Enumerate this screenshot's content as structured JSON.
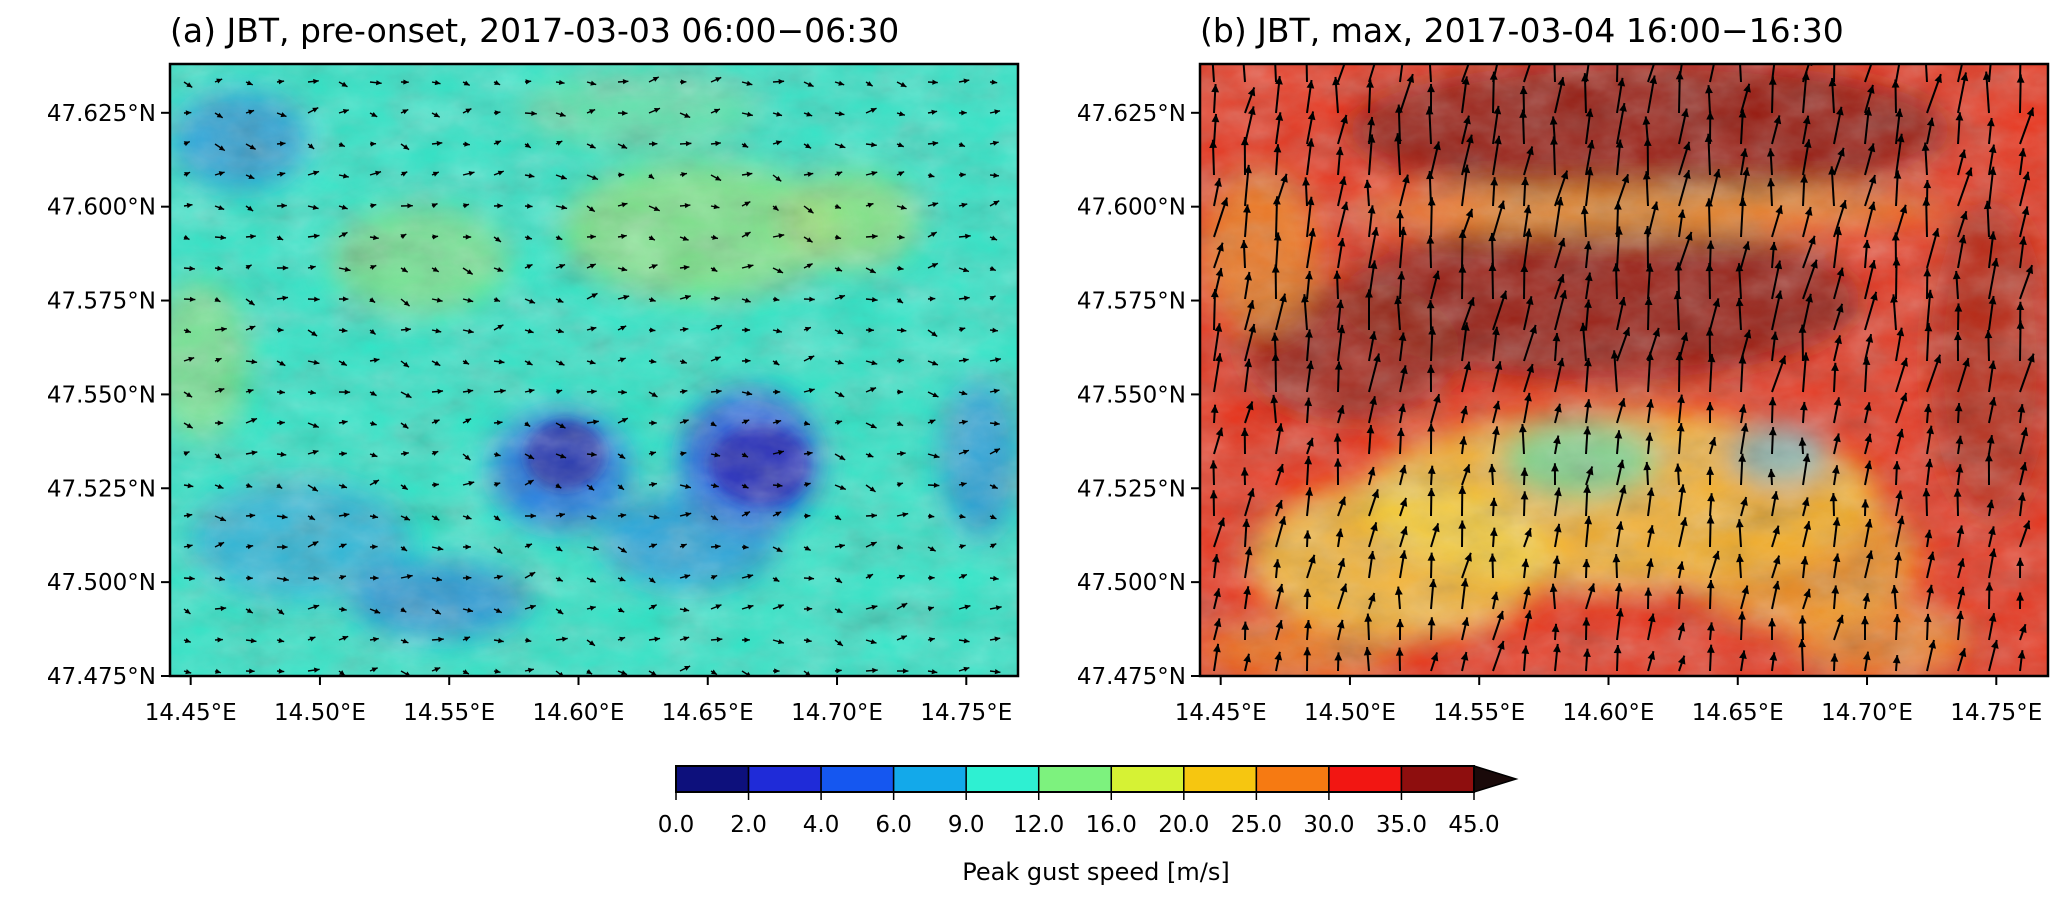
{
  "chart_data": [
    {
      "type": "heatmap",
      "title": "(a) JBT, pre-onset, 2017-03-03 06:00−06:30",
      "x_ticks": [
        "14.45°E",
        "14.50°E",
        "14.55°E",
        "14.60°E",
        "14.65°E",
        "14.70°E",
        "14.75°E"
      ],
      "y_ticks": [
        "47.625°N",
        "47.600°N",
        "47.575°N",
        "47.550°N",
        "47.525°N",
        "47.500°N",
        "47.475°N"
      ],
      "x_values": [
        14.45,
        14.5,
        14.55,
        14.6,
        14.65,
        14.7,
        14.75
      ],
      "y_values": [
        47.625,
        47.6,
        47.575,
        47.55,
        47.525,
        47.5,
        47.475
      ],
      "xlim": [
        14.442,
        14.77
      ],
      "ylim": [
        47.475,
        47.638
      ],
      "wind_vectors": "small arrows, light winds",
      "colors": {
        "base": "#2fe6c8",
        "low": "#1a28d0",
        "mid": "#7fd87a"
      }
    },
    {
      "type": "heatmap",
      "title": "(b) JBT, max, 2017-03-04 16:00−16:30",
      "x_ticks": [
        "14.45°E",
        "14.50°E",
        "14.55°E",
        "14.60°E",
        "14.65°E",
        "14.70°E",
        "14.75°E"
      ],
      "y_ticks": [
        "47.625°N",
        "47.600°N",
        "47.575°N",
        "47.550°N",
        "47.525°N",
        "47.500°N",
        "47.475°N"
      ],
      "x_values": [
        14.45,
        14.5,
        14.55,
        14.6,
        14.65,
        14.7,
        14.75
      ],
      "y_values": [
        47.625,
        47.6,
        47.575,
        47.55,
        47.525,
        47.5,
        47.475
      ],
      "xlim": [
        14.442,
        14.77
      ],
      "ylim": [
        47.475,
        47.638
      ],
      "wind_vectors": "large arrows, strong south-westerly winds",
      "colors": {
        "base": "#e8341c",
        "high": "#8e1a10",
        "mid": "#f6c634"
      }
    }
  ],
  "colorbar": {
    "label": "Peak gust speed [m/s]",
    "ticks": [
      "0.0",
      "2.0",
      "4.0",
      "6.0",
      "9.0",
      "12.0",
      "16.0",
      "20.0",
      "25.0",
      "30.0",
      "35.0",
      "45.0"
    ],
    "colors": [
      "#0d107c",
      "#1f2bd8",
      "#1557f0",
      "#13a9ea",
      "#2ef0d2",
      "#7df27e",
      "#d6f234",
      "#f6c610",
      "#f67a12",
      "#f21612",
      "#8e0e0e"
    ],
    "extend": "max"
  }
}
